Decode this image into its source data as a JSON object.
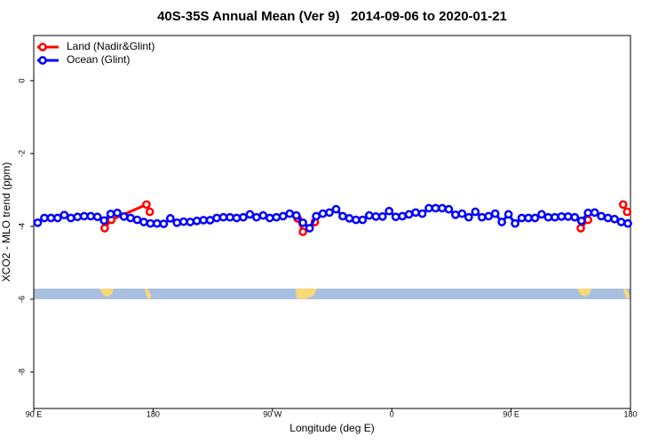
{
  "chart_data": {
    "type": "line",
    "title": "40S-35S Annual Mean (Ver 9)   2014-09-06 to 2020-01-21",
    "x_label": "Longitude (deg E)",
    "y_label": "XCO2 - MLO trend (ppm)",
    "xlim": [
      90,
      540
    ],
    "ylim": [
      -9,
      1.24
    ],
    "xticks": [
      {
        "value": 90,
        "label": "90 E"
      },
      180,
      {
        "value": 270,
        "label": "90 W"
      },
      {
        "value": 360,
        "label": "0"
      },
      {
        "value": 450,
        "label": "90 E"
      },
      {
        "value": 540,
        "label": "180"
      }
    ],
    "yticks": [
      0,
      -2,
      -4,
      -6,
      -8
    ],
    "legend": "top-left",
    "series": [
      {
        "name": "Land (Nadir&Glint)",
        "color": "#ff0000",
        "x": [
          143.5,
          148.5,
          175,
          177.5,
          230,
          289,
          293,
          302,
          400,
          502.5,
          508,
          520,
          534.5,
          537.5
        ],
        "values": [
          -4.05,
          -3.82,
          -3.4,
          -3.6,
          null,
          -3.78,
          -4.15,
          -3.88,
          null,
          -4.05,
          -3.82,
          null,
          -3.4,
          -3.6
        ]
      },
      {
        "name": "Ocean (Glint)",
        "color": "#0000ff",
        "x": [
          93,
          98,
          103,
          108,
          113,
          118,
          123,
          128,
          133,
          138,
          143,
          148,
          153,
          158,
          163,
          168,
          173,
          178,
          183,
          188,
          193,
          198,
          203,
          208,
          213,
          218,
          223,
          228,
          233,
          238,
          243,
          248,
          253,
          258,
          263,
          268,
          273,
          278,
          283,
          288,
          293,
          298,
          303,
          308,
          313,
          318,
          323,
          328,
          333,
          338,
          343,
          348,
          353,
          358,
          363,
          368,
          373,
          378,
          383,
          388,
          393,
          398,
          403,
          408,
          413,
          418,
          423,
          428,
          433,
          438,
          443,
          448,
          453,
          458,
          463,
          468,
          473,
          478,
          483,
          488,
          493,
          498,
          503,
          508,
          513,
          518,
          523,
          528,
          533,
          538
        ],
        "values": [
          -3.9,
          -3.77,
          -3.77,
          -3.77,
          -3.69,
          -3.77,
          -3.74,
          -3.72,
          -3.72,
          -3.74,
          -3.84,
          -3.66,
          -3.63,
          -3.73,
          -3.77,
          -3.82,
          -3.88,
          -3.92,
          -3.92,
          -3.93,
          -3.78,
          -3.9,
          -3.87,
          -3.88,
          -3.85,
          -3.83,
          -3.83,
          -3.77,
          -3.75,
          -3.75,
          -3.77,
          -3.75,
          -3.67,
          -3.75,
          -3.7,
          -3.77,
          -3.75,
          -3.72,
          -3.65,
          -3.7,
          -3.9,
          -4.05,
          -3.72,
          -3.65,
          -3.62,
          -3.53,
          -3.72,
          -3.78,
          -3.82,
          -3.82,
          -3.7,
          -3.73,
          -3.73,
          -3.58,
          -3.74,
          -3.72,
          -3.67,
          -3.62,
          -3.65,
          -3.5,
          -3.5,
          -3.5,
          -3.53,
          -3.68,
          -3.65,
          -3.75,
          -3.6,
          -3.75,
          -3.72,
          -3.65,
          -3.88,
          -3.67,
          -3.92,
          -3.77,
          -3.77,
          -3.77,
          -3.67,
          -3.75,
          -3.75,
          -3.73,
          -3.73,
          -3.75,
          -3.85,
          -3.63,
          -3.62,
          -3.72,
          -3.77,
          -3.8,
          -3.88,
          -3.92
        ]
      }
    ]
  }
}
